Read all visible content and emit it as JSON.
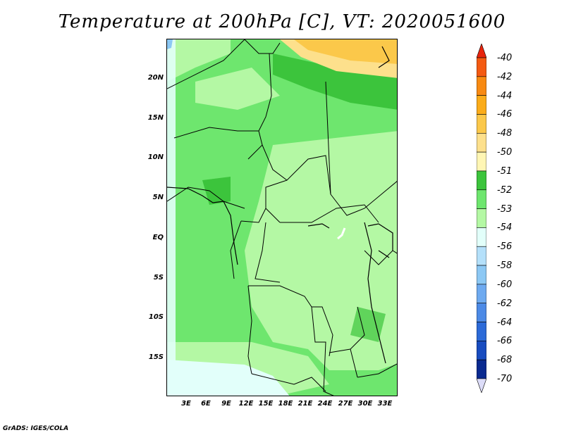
{
  "title": "Temperature at 200hPa [C], VT: 2020051600",
  "credit": "GrADS: IGES/COLA",
  "map": {
    "lat_labels": [
      "20N",
      "15N",
      "10N",
      "5N",
      "EQ",
      "5S",
      "10S",
      "15S"
    ],
    "lon_labels": [
      "3E",
      "6E",
      "9E",
      "12E",
      "15E",
      "18E",
      "21E",
      "24E",
      "27E",
      "30E",
      "33E"
    ]
  },
  "colorbar": {
    "labels": [
      "-40",
      "-42",
      "-44",
      "-46",
      "-48",
      "-50",
      "-51",
      "-52",
      "-53",
      "-54",
      "-56",
      "-58",
      "-60",
      "-62",
      "-64",
      "-66",
      "-68",
      "-70"
    ],
    "colors": {
      "above_max": "#e8240c",
      "bins": [
        "#f45a12",
        "#f88a12",
        "#fbac1a",
        "#fbc84a",
        "#fde08c",
        "#fff6b4",
        "#3cc43c",
        "#6ee66e",
        "#b4f8a4",
        "#e2fffa",
        "#b4e0fa",
        "#8cc8f4",
        "#6eaaf0",
        "#4c8ae6",
        "#2c6ad8",
        "#184cc0",
        "#0a2a90"
      ],
      "below_min": "#dcdcf8"
    }
  }
}
